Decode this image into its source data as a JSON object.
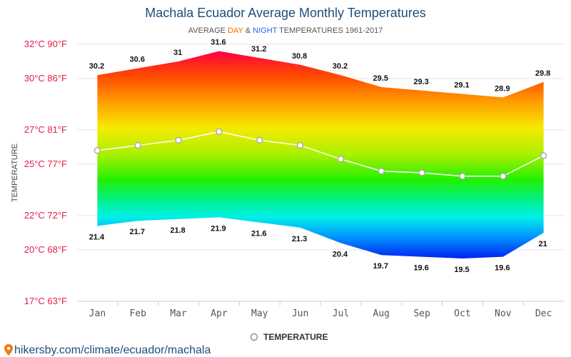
{
  "colors": {
    "title": "#1f4e79",
    "day": "#ff6a00",
    "night": "#2563eb",
    "ytick": "#e0204a",
    "line": "#ffffff",
    "point_stroke": "#aaaaaa"
  },
  "subtitle": {
    "prefix": "AVERAGE",
    "day": "DAY",
    "amp": "&",
    "night": "NIGHT",
    "suffix": "TEMPERATURES 1961-2017"
  },
  "legend": {
    "icon": "circle-marker-icon",
    "label": "TEMPERATURE"
  },
  "footer": {
    "icon": "map-pin-icon",
    "text": "hikersby.com/climate/ecuador/machala"
  },
  "chart_data": {
    "type": "area",
    "title": "Machala Ecuador Average Monthly Temperatures",
    "ylabel": "TEMPERATURE",
    "categories": [
      "Jan",
      "Feb",
      "Mar",
      "Apr",
      "May",
      "Jun",
      "Jul",
      "Aug",
      "Sep",
      "Oct",
      "Nov",
      "Dec"
    ],
    "ylim": [
      17,
      32
    ],
    "yticks": [
      17,
      20,
      22,
      25,
      27,
      30,
      32
    ],
    "ytick_labels": [
      "17°C 63°F",
      "20°C 68°F",
      "22°C 72°F",
      "25°C 77°F",
      "27°C 81°F",
      "30°C 86°F",
      "32°C 90°F"
    ],
    "grid": true,
    "legend_position": "bottom",
    "series": [
      {
        "role": "day",
        "values": [
          30.2,
          30.6,
          31,
          31.6,
          31.2,
          30.8,
          30.2,
          29.5,
          29.3,
          29.1,
          28.9,
          29.8
        ]
      },
      {
        "role": "night",
        "values": [
          21.4,
          21.7,
          21.8,
          21.9,
          21.6,
          21.3,
          20.4,
          19.7,
          19.6,
          19.5,
          19.6,
          21
        ]
      },
      {
        "name": "TEMPERATURE",
        "values": [
          25.8,
          26.1,
          26.4,
          26.9,
          26.4,
          26.1,
          25.3,
          24.6,
          24.5,
          24.3,
          24.3,
          25.5
        ]
      }
    ]
  }
}
